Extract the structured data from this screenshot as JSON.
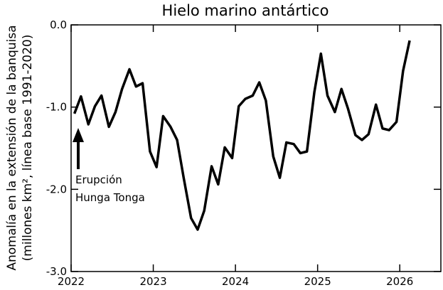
{
  "chart_data": {
    "type": "line",
    "title": "Hielo marino antártico",
    "ylabel": [
      "Anomalía en la extensión de la banquisa",
      "(millones km², línea base 1991-2020)"
    ],
    "annotation": [
      "Erupción",
      "Hunga Tonga"
    ],
    "x": [
      2022.04,
      2022.12,
      2022.21,
      2022.29,
      2022.37,
      2022.46,
      2022.54,
      2022.62,
      2022.71,
      2022.79,
      2022.87,
      2022.96,
      2023.04,
      2023.12,
      2023.21,
      2023.29,
      2023.37,
      2023.46,
      2023.54,
      2023.62,
      2023.71,
      2023.79,
      2023.87,
      2023.96,
      2024.04,
      2024.12,
      2024.21,
      2024.29,
      2024.37,
      2024.46,
      2024.54,
      2024.62,
      2024.71,
      2024.79,
      2024.87,
      2024.96,
      2025.04,
      2025.12,
      2025.21,
      2025.29,
      2025.37,
      2025.46,
      2025.54,
      2025.62,
      2025.71,
      2025.79,
      2025.87,
      2025.96,
      2026.04,
      2026.12
    ],
    "series": [
      {
        "color": "#000000",
        "values": [
          -1.08,
          -0.87,
          -1.21,
          -0.99,
          -0.86,
          -1.24,
          -1.06,
          -0.78,
          -0.54,
          -0.75,
          -0.71,
          -1.54,
          -1.73,
          -1.11,
          -1.24,
          -1.4,
          -1.86,
          -2.35,
          -2.49,
          -2.26,
          -1.72,
          -1.94,
          -1.49,
          -1.62,
          -0.99,
          -0.9,
          -0.86,
          -0.7,
          -0.92,
          -1.6,
          -1.86,
          -1.43,
          -1.45,
          -1.56,
          -1.54,
          -0.82,
          -0.35,
          -0.86,
          -1.06,
          -0.78,
          -1.02,
          -1.34,
          -1.4,
          -1.33,
          -0.97,
          -1.26,
          -1.28,
          -1.18,
          -0.56,
          -0.19
        ]
      }
    ],
    "xlim": [
      2022,
      2026.5
    ],
    "xticks": [
      2022,
      2023,
      2024,
      2025,
      2026
    ],
    "ylim": [
      -3,
      0
    ],
    "yticks": [
      {
        "value": 0,
        "label": "0.0"
      },
      {
        "value": -1,
        "label": "-1.0"
      },
      {
        "value": -2,
        "label": "-2.0"
      },
      {
        "value": -3,
        "label": "-3.0"
      }
    ]
  }
}
